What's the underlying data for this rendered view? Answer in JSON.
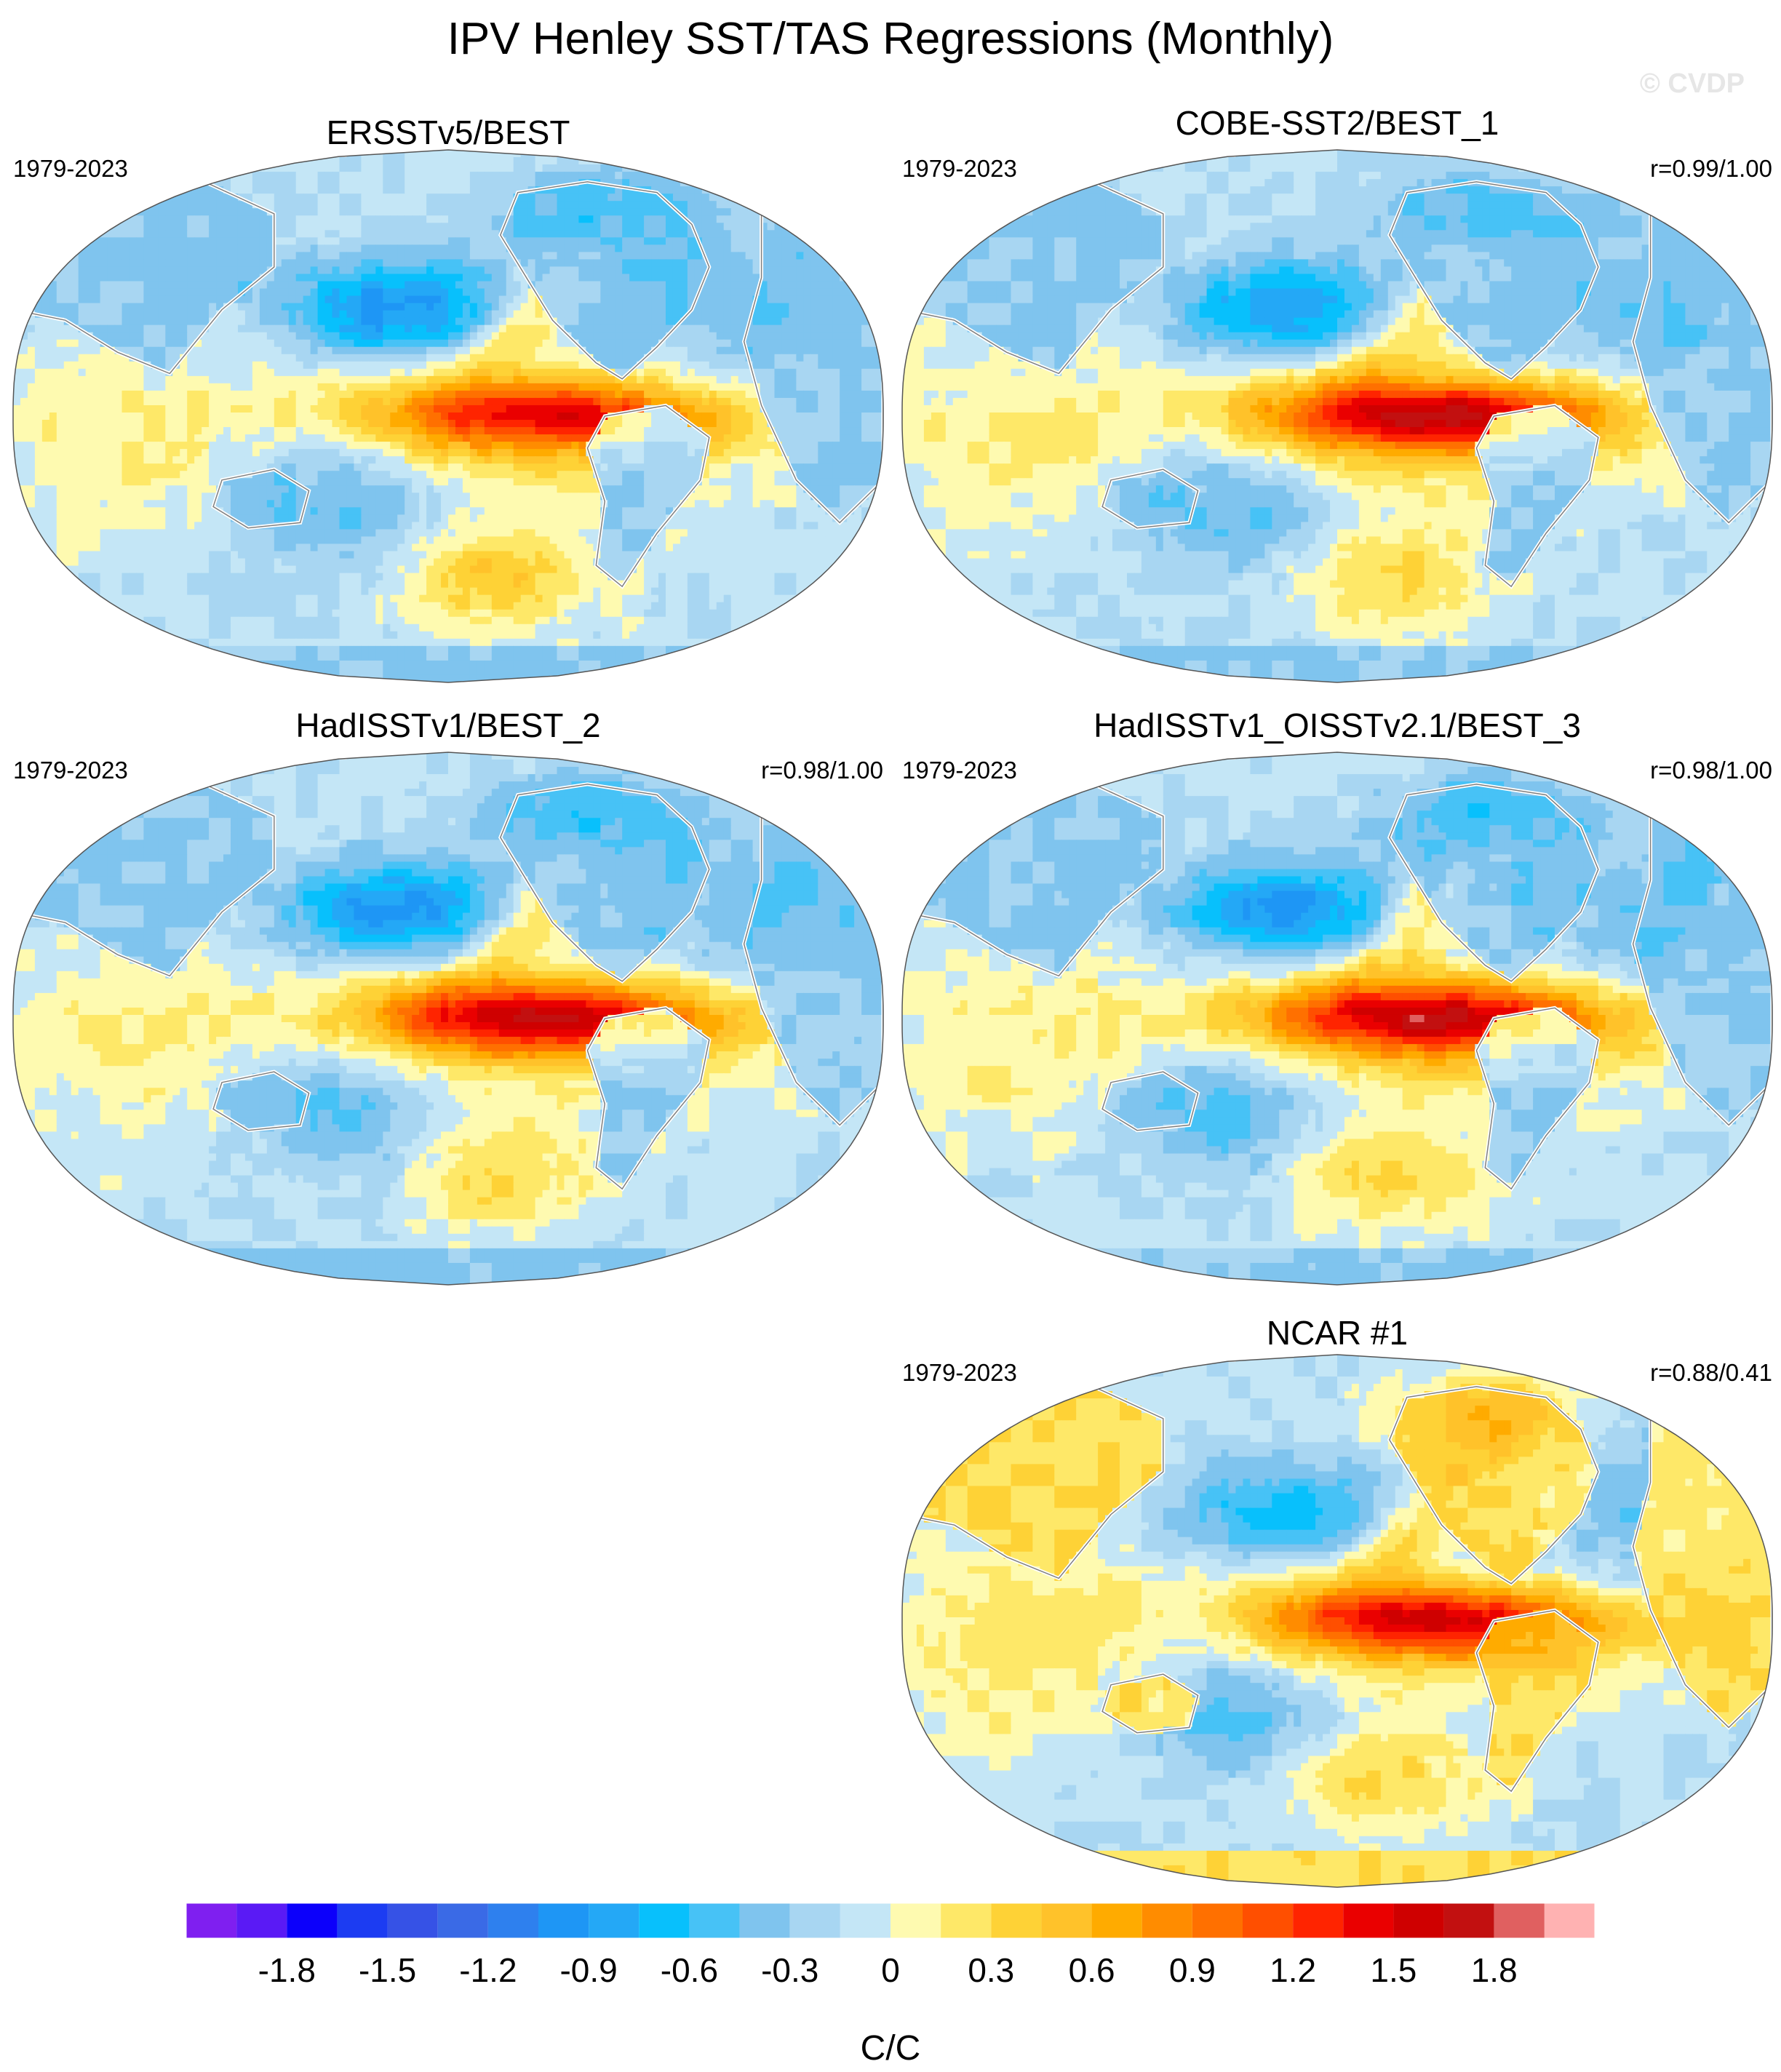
{
  "figure": {
    "title": "IPV Henley SST/TAS Regressions (Monthly)",
    "watermark": "© CVDP"
  },
  "panels": [
    {
      "title": "ERSSTv5/BEST",
      "period": "1979-2023",
      "corr": ""
    },
    {
      "title": "COBE-SST2/BEST_1",
      "period": "1979-2023",
      "corr": "r=0.99/1.00"
    },
    {
      "title": "HadISSTv1/BEST_2",
      "period": "1979-2023",
      "corr": "r=0.98/1.00"
    },
    {
      "title": "HadISSTv1_OISSTv2.1/BEST_3",
      "period": "1979-2023",
      "corr": "r=0.98/1.00"
    },
    {
      "title": "NCAR #1",
      "period": "1979-2023",
      "corr": "r=0.88/0.41"
    }
  ],
  "chart_data": {
    "type": "heatmap",
    "projection": "robinson",
    "units": "C/C",
    "colorbar": {
      "tick_labels": [
        "-1.8",
        "-1.5",
        "-1.2",
        "-0.9",
        "-0.6",
        "-0.3",
        "0",
        "0.3",
        "0.6",
        "0.9",
        "1.2",
        "1.5",
        "1.8"
      ],
      "levels": [
        -2.0,
        -1.9,
        -1.8,
        -1.7,
        -1.6,
        -1.5,
        -1.4,
        -1.3,
        -1.2,
        -1.1,
        -1.0,
        -0.9,
        -0.8,
        -0.7,
        -0.6,
        -0.5,
        -0.4,
        -0.3,
        -0.2,
        -0.1,
        0.0,
        0.1,
        0.2,
        0.3,
        0.4,
        0.5,
        0.6,
        0.7,
        0.8,
        0.9,
        1.0,
        1.1,
        1.2,
        1.3,
        1.4,
        1.5,
        1.6,
        1.7,
        1.8,
        1.9,
        2.0
      ],
      "colors": [
        "#7f1ff0",
        "#5a1af5",
        "#0c00fb",
        "#1c3cf2",
        "#3652e6",
        "#3a6ae6",
        "#2e80ee",
        "#1e96f5",
        "#24a8f6",
        "#08c0fc",
        "#47c2f6",
        "#7fc4ee",
        "#a8d6f2",
        "#c4e6f6",
        "#fefab0",
        "#fee868",
        "#fed236",
        "#ffc22a",
        "#ffab00",
        "#ff8c00",
        "#ff7000",
        "#ff4f00",
        "#ff2400",
        "#ea0000",
        "#cf0000",
        "#c21010",
        "#e06060",
        "#ffb2b2"
      ]
    },
    "maps": [
      {
        "panel": 0,
        "features": {
          "east_pacific_max": 1.2,
          "north_pacific_min": -0.9,
          "south_pacific_max": 0.6,
          "indian_ocean": 0.2,
          "north_atlantic": -0.3,
          "arctic_canada": -0.6,
          "land": -0.3
        }
      },
      {
        "panel": 1,
        "features": {
          "east_pacific_max": 1.4,
          "north_pacific_min": -0.8,
          "south_pacific_max": 0.5,
          "indian_ocean": 0.2,
          "north_atlantic": -0.3,
          "arctic_canada": -0.6,
          "land": -0.3
        }
      },
      {
        "panel": 2,
        "features": {
          "east_pacific_max": 1.4,
          "north_pacific_min": -0.9,
          "south_pacific_max": 0.5,
          "indian_ocean": 0.2,
          "north_atlantic": -0.3,
          "arctic_canada": -0.7,
          "land": -0.3
        }
      },
      {
        "panel": 3,
        "features": {
          "east_pacific_max": 1.4,
          "north_pacific_min": -0.9,
          "south_pacific_max": 0.5,
          "indian_ocean": 0.2,
          "north_atlantic": -0.3,
          "arctic_canada": -0.7,
          "land": -0.3
        }
      },
      {
        "panel": 4,
        "features": {
          "east_pacific_max": 1.3,
          "north_pacific_min": -0.6,
          "south_pacific_max": 0.5,
          "indian_ocean": 0.3,
          "north_atlantic": -0.3,
          "arctic_canada": 0.8,
          "land": 0.3
        }
      }
    ]
  }
}
